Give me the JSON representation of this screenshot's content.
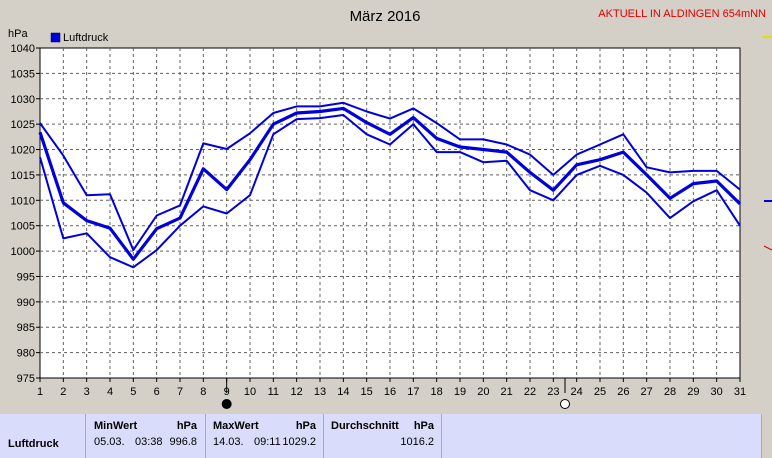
{
  "station_label": "AKTUELL IN ALDINGEN 654mNN",
  "stats": {
    "row_label": "Luftdruck",
    "min": {
      "label": "MinWert",
      "unit": "hPa",
      "date": "05.03.",
      "time": "03:38",
      "value": "996.8"
    },
    "max": {
      "label": "MaxWert",
      "unit": "hPa",
      "date": "14.03.",
      "time": "09:11",
      "value": "1029.2"
    },
    "avg": {
      "label": "Durchschnitt",
      "unit": "hPa",
      "value": "1016.2"
    }
  },
  "colors": {
    "series": "#0000dd",
    "plot_bg": "#ffffff",
    "grid": "#606060",
    "station": "#e00000",
    "panel": "#d9dcfa"
  },
  "chart_data": {
    "type": "line",
    "title": "März 2016",
    "ylabel": "hPa",
    "legend": {
      "entry": "Luftdruck",
      "placement": "top-left"
    },
    "ylim": [
      975,
      1040
    ],
    "yticks": [
      975,
      980,
      985,
      990,
      995,
      1000,
      1005,
      1010,
      1015,
      1020,
      1025,
      1030,
      1035,
      1040
    ],
    "x": [
      1,
      2,
      3,
      4,
      5,
      6,
      7,
      8,
      9,
      10,
      11,
      12,
      13,
      14,
      15,
      16,
      17,
      18,
      19,
      20,
      21,
      22,
      23,
      24,
      25,
      26,
      27,
      28,
      29,
      30,
      31
    ],
    "grid": true,
    "markers": [
      {
        "day": 9,
        "symbol": "new-moon-icon"
      },
      {
        "day": 23.5,
        "symbol": "full-moon-icon"
      }
    ],
    "series": [
      {
        "role": "max",
        "values": [
          1025.2,
          1018.8,
          1011.0,
          1011.2,
          1000.2,
          1007.0,
          1009.0,
          1021.2,
          1020.1,
          1023.2,
          1027.2,
          1028.5,
          1028.5,
          1029.2,
          1027.5,
          1026.1,
          1028.1,
          1025.2,
          1022.0,
          1022.0,
          1021.0,
          1019.0,
          1015.0,
          1019.0,
          1021.0,
          1023.0,
          1016.5,
          1015.5,
          1015.8,
          1015.8,
          1012.1
        ]
      },
      {
        "role": "mean",
        "values": [
          1023.4,
          1009.5,
          1006.0,
          1004.5,
          998.4,
          1004.4,
          1006.5,
          1016.2,
          1012.1,
          1018.0,
          1025.0,
          1027.2,
          1027.5,
          1028.1,
          1025.3,
          1023.0,
          1026.3,
          1022.2,
          1020.5,
          1020.0,
          1019.5,
          1015.5,
          1012.0,
          1017.0,
          1018.0,
          1019.5,
          1015.0,
          1010.4,
          1013.3,
          1013.8,
          1009.3
        ]
      },
      {
        "role": "min",
        "values": [
          1018.5,
          1002.5,
          1003.5,
          998.8,
          996.8,
          1000.2,
          1005.0,
          1008.8,
          1007.4,
          1011.0,
          1023.0,
          1026.0,
          1026.2,
          1026.8,
          1023.0,
          1021.0,
          1025.0,
          1019.5,
          1019.5,
          1017.5,
          1017.8,
          1012.0,
          1010.0,
          1015.0,
          1016.8,
          1015.0,
          1011.5,
          1006.5,
          1009.8,
          1012.0,
          1005.0
        ]
      }
    ]
  }
}
